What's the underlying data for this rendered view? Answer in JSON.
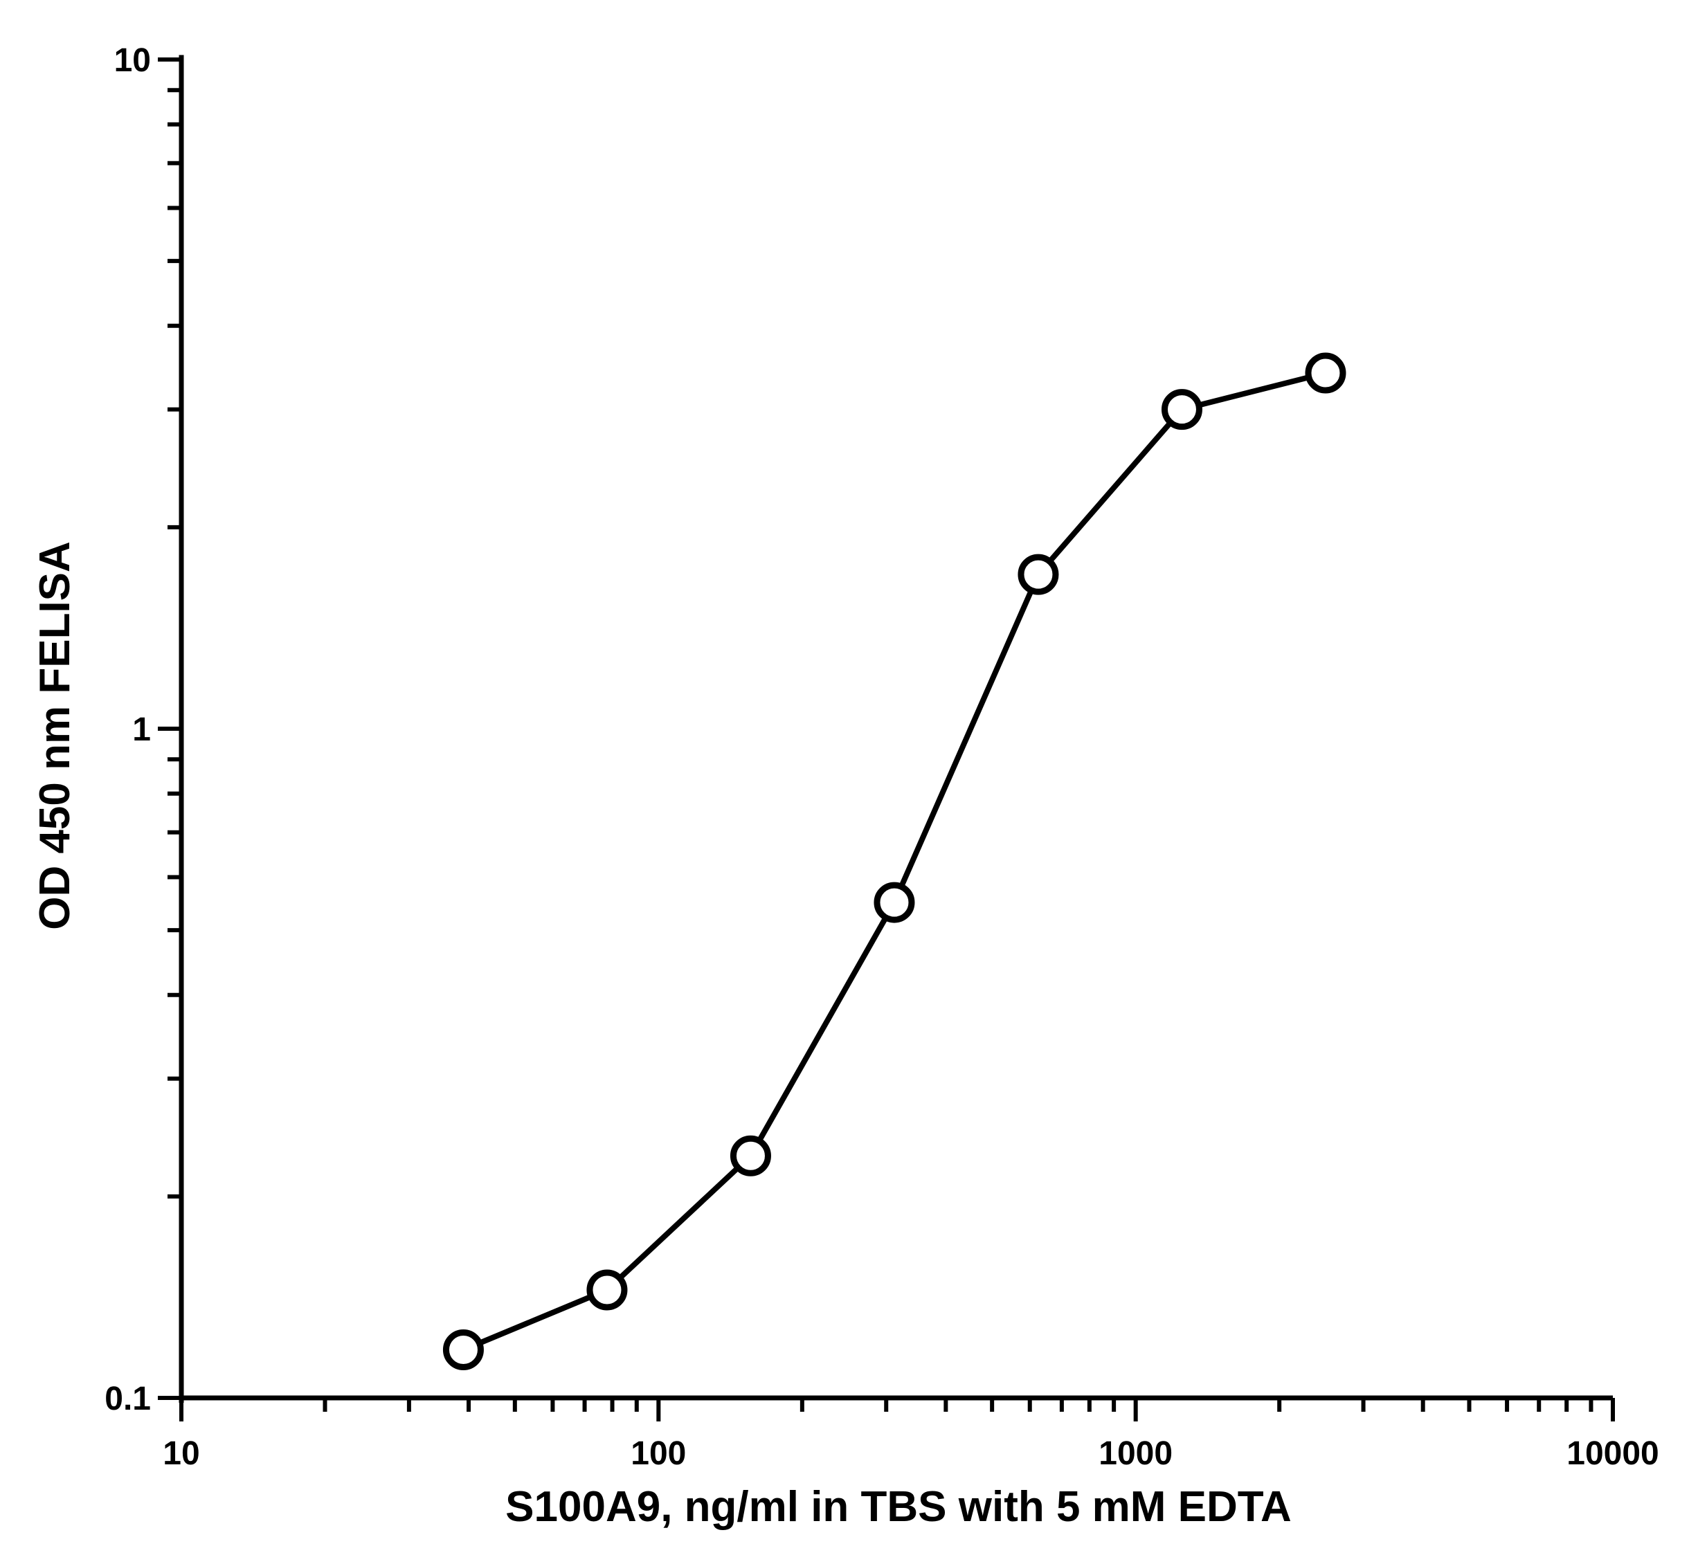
{
  "chart_data": {
    "type": "line",
    "title": "",
    "xlabel": "S100A9, ng/ml in TBS with 5 mM EDTA",
    "ylabel": "OD 450 nm FELISA",
    "xscale": "log",
    "yscale": "log",
    "xlim": [
      10,
      10000
    ],
    "ylim": [
      0.1,
      10
    ],
    "x_ticks": [
      "10",
      "100",
      "1000",
      "10000"
    ],
    "y_ticks": [
      "0.1",
      "1",
      "10"
    ],
    "grid": false,
    "legend": "none",
    "marker": "open-circle",
    "line_color": "#000000",
    "series": [
      {
        "x": [
          39,
          78,
          156,
          312,
          625,
          1250,
          2500
        ],
        "y": [
          0.118,
          0.145,
          0.23,
          0.55,
          1.7,
          3.0,
          3.4
        ]
      }
    ]
  }
}
